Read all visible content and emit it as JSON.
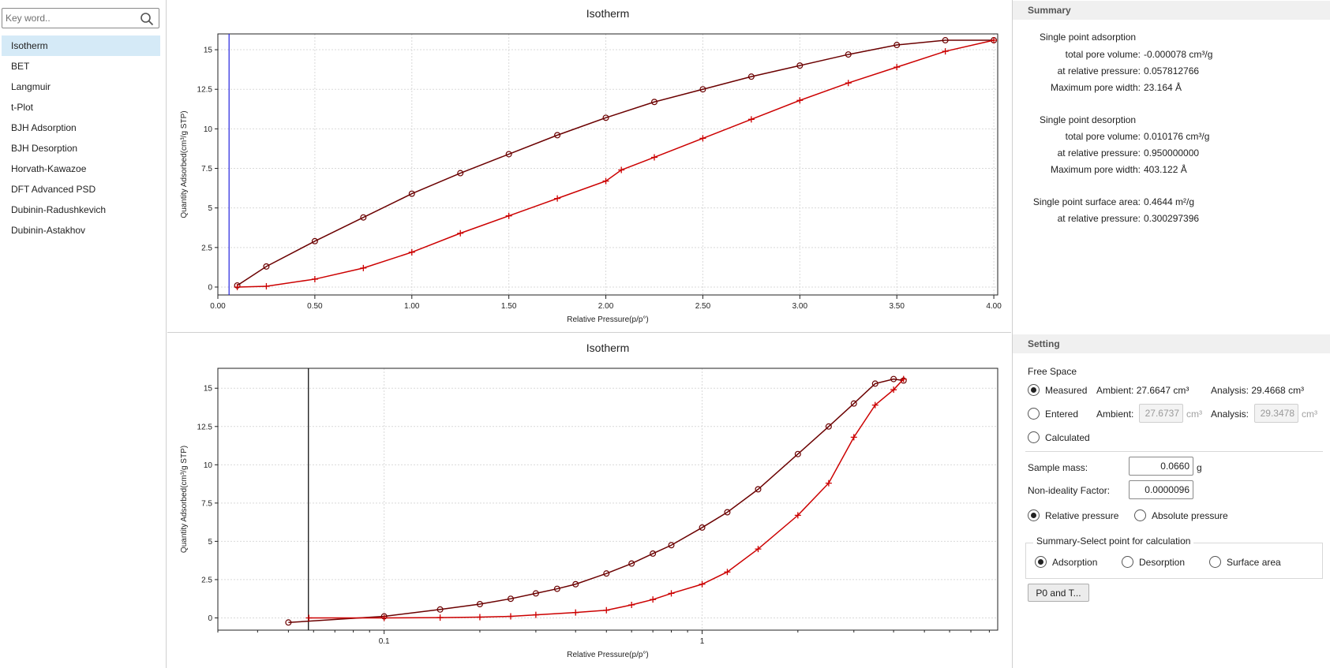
{
  "search": {
    "placeholder": "Key word.."
  },
  "sidebar": {
    "items": [
      {
        "label": "Isotherm",
        "selected": true
      },
      {
        "label": "BET"
      },
      {
        "label": "Langmuir"
      },
      {
        "label": "t-Plot"
      },
      {
        "label": "BJH Adsorption"
      },
      {
        "label": "BJH Desorption"
      },
      {
        "label": "Horvath-Kawazoe"
      },
      {
        "label": "DFT Advanced PSD"
      },
      {
        "label": "Dubinin-Radushkevich"
      },
      {
        "label": "Dubinin-Astakhov"
      }
    ]
  },
  "chart_data": [
    {
      "type": "line",
      "title": "Isotherm",
      "xlabel": "Relative Pressure(p/p°)",
      "ylabel": "Quantity Adsorbed(cm³/g STP)",
      "xlim": [
        0,
        4.02
      ],
      "ylim": [
        -0.5,
        16
      ],
      "xscale": "linear",
      "xticks": [
        "0.00",
        "0.50",
        "1.00",
        "1.50",
        "2.00",
        "2.50",
        "3.00",
        "3.50",
        "4.00"
      ],
      "yticks": [
        "0",
        "2.5",
        "5",
        "7.5",
        "10",
        "12.5",
        "15"
      ],
      "grid": true,
      "marker_line_x": 0.0578,
      "series": [
        {
          "marker": "circle",
          "color": "#6b0000",
          "x": [
            0.1,
            0.25,
            0.5,
            0.75,
            1.0,
            1.25,
            1.5,
            1.75,
            2.0,
            2.25,
            2.5,
            2.75,
            3.0,
            3.25,
            3.5,
            3.75,
            4.0
          ],
          "y": [
            0.1,
            1.3,
            2.9,
            4.4,
            5.9,
            7.2,
            8.4,
            9.6,
            10.7,
            11.7,
            12.5,
            13.3,
            14.0,
            14.7,
            15.3,
            15.6,
            15.6
          ]
        },
        {
          "marker": "plus",
          "color": "#cc0000",
          "x": [
            0.1,
            0.25,
            0.5,
            0.75,
            1.0,
            1.25,
            1.5,
            1.75,
            2.0,
            2.08,
            2.25,
            2.5,
            2.75,
            3.0,
            3.25,
            3.5,
            3.75,
            4.0
          ],
          "y": [
            0.0,
            0.05,
            0.5,
            1.2,
            2.2,
            3.4,
            4.5,
            5.6,
            6.7,
            7.4,
            8.2,
            9.4,
            10.6,
            11.8,
            12.9,
            13.9,
            14.9,
            15.6
          ]
        }
      ]
    },
    {
      "type": "line",
      "title": "Isotherm",
      "xlabel": "Relative Pressure(p/p°)",
      "ylabel": "Quantity Adsorbed(cm³/g STP)",
      "xlim": [
        0.03,
        8.5
      ],
      "ylim": [
        -0.8,
        16.3
      ],
      "xscale": "log",
      "xticks": [
        "0.1",
        "1"
      ],
      "yticks": [
        "0",
        "2.5",
        "5",
        "7.5",
        "10",
        "12.5",
        "15"
      ],
      "grid": true,
      "marker_line_x": 0.0578,
      "series": [
        {
          "marker": "circle",
          "color": "#6b0000",
          "x": [
            0.05,
            0.1,
            0.15,
            0.2,
            0.25,
            0.3,
            0.35,
            0.4,
            0.5,
            0.6,
            0.7,
            0.8,
            1.0,
            1.2,
            1.5,
            2.0,
            2.5,
            3.0,
            3.5,
            4.0,
            4.3
          ],
          "y": [
            -0.3,
            0.1,
            0.55,
            0.9,
            1.25,
            1.6,
            1.9,
            2.2,
            2.9,
            3.55,
            4.2,
            4.75,
            5.9,
            6.9,
            8.4,
            10.7,
            12.5,
            14.0,
            15.3,
            15.6,
            15.5
          ]
        },
        {
          "marker": "plus",
          "color": "#cc0000",
          "x": [
            0.058,
            0.1,
            0.15,
            0.2,
            0.25,
            0.3,
            0.4,
            0.5,
            0.6,
            0.7,
            0.8,
            1.0,
            1.2,
            1.5,
            2.0,
            2.5,
            3.0,
            3.5,
            4.0,
            4.3
          ],
          "y": [
            0.0,
            0.0,
            0.02,
            0.05,
            0.1,
            0.2,
            0.35,
            0.5,
            0.85,
            1.2,
            1.6,
            2.2,
            3.0,
            4.5,
            6.7,
            8.8,
            11.8,
            13.9,
            14.9,
            15.6
          ]
        }
      ]
    }
  ],
  "summary": {
    "header": "Summary",
    "adsorption_title": "Single point adsorption",
    "ads_total_pore_volume_label": "total pore volume:",
    "ads_total_pore_volume": "-0.000078 cm³/g",
    "ads_rel_pressure_label": "at relative pressure:",
    "ads_rel_pressure": "0.057812766",
    "ads_max_pore_width_label": "Maximum pore width:",
    "ads_max_pore_width": "23.164  Å",
    "desorption_title": "Single point desorption",
    "des_total_pore_volume_label": "total pore volume:",
    "des_total_pore_volume": "0.010176 cm³/g",
    "des_rel_pressure_label": "at relative pressure:",
    "des_rel_pressure": "0.950000000",
    "des_max_pore_width_label": "Maximum pore width:",
    "des_max_pore_width": "403.122 Å",
    "surface_area_label": "Single point surface area:",
    "surface_area": "0.4644   m²/g",
    "sa_rel_pressure_label": "at relative pressure:",
    "sa_rel_pressure": "0.300297396"
  },
  "setting": {
    "header": "Setting",
    "free_space_label": "Free Space",
    "measured_label": "Measured",
    "measured_ambient": "Ambient: 27.6647 cm³",
    "measured_analysis": "Analysis: 29.4668 cm³",
    "entered_label": "Entered",
    "entered_ambient_label": "Ambient:",
    "entered_ambient_value": "27.6737",
    "entered_ambient_unit": "cm³",
    "entered_analysis_label": "Analysis:",
    "entered_analysis_value": "29.3478",
    "entered_analysis_unit": "cm³",
    "calculated_label": "Calculated",
    "sample_mass_label": "Sample mass:",
    "sample_mass_value": "0.0660",
    "sample_mass_unit": "g",
    "nonideality_label": "Non-ideality Factor:",
    "nonideality_value": "0.0000096",
    "relative_pressure_label": "Relative pressure",
    "absolute_pressure_label": "Absolute pressure",
    "summary_group_title": "Summary-Select point for calculation",
    "adsorption_label": "Adsorption",
    "desorption_label": "Desorption",
    "surface_area_label": "Surface area",
    "p0_button_label": "P0 and T..."
  }
}
